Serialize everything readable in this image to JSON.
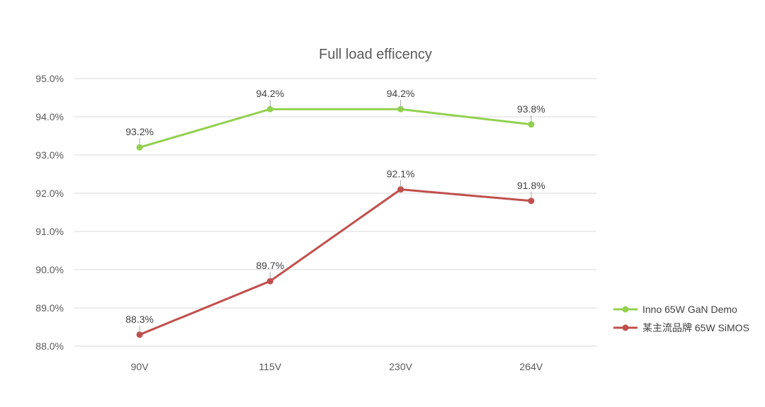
{
  "chart_data": {
    "type": "line",
    "title": "Full load efficency",
    "categories": [
      "90V",
      "115V",
      "230V",
      "264V"
    ],
    "y_ticks": [
      "88.0%",
      "89.0%",
      "90.0%",
      "91.0%",
      "92.0%",
      "93.0%",
      "94.0%",
      "95.0%"
    ],
    "ylim": [
      88.0,
      95.0
    ],
    "grid": true,
    "legend_position": "right",
    "series": [
      {
        "name": "Inno 65W GaN Demo",
        "color": "#92d050",
        "values": [
          93.2,
          94.2,
          94.2,
          93.8
        ],
        "labels": [
          "93.2%",
          "94.2%",
          "94.2%",
          "93.8%"
        ]
      },
      {
        "name": "某主流品牌 65W SiMOS",
        "color": "#c0504d",
        "values": [
          88.3,
          89.7,
          92.1,
          91.8
        ],
        "labels": [
          "88.3%",
          "89.7%",
          "92.1%",
          "91.8%"
        ]
      }
    ]
  }
}
